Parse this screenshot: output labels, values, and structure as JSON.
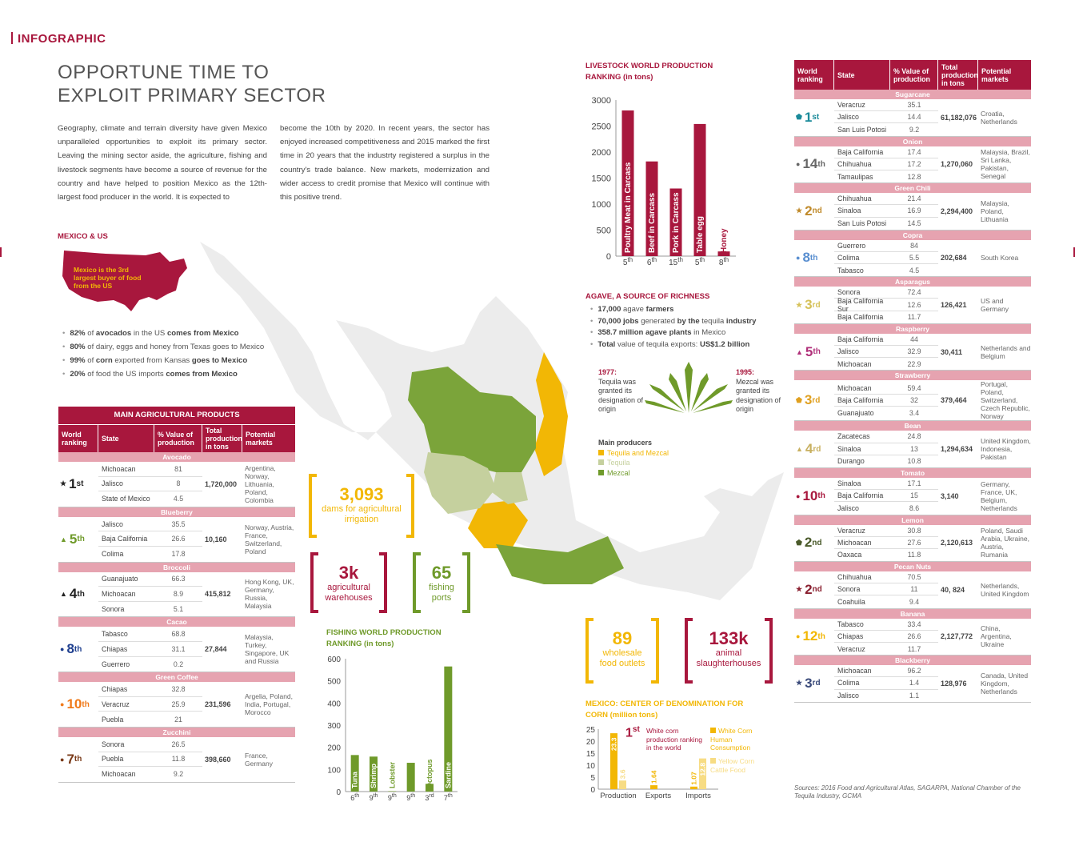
{
  "section_tag": "INFOGRAPHIC",
  "title_line1": "OPPORTUNE TIME TO",
  "title_line2": "EXPLOIT PRIMARY SECTOR",
  "intro_left": "Geography, climate and terrain diversity have given Mexico unparalleled opportunities to exploit its primary sector. Leaving the mining sector aside, the agriculture, fishing and livestock segments have become a source of revenue for the country and have helped to position Mexico as the 12th-largest food producer in the world. It is expected to",
  "intro_right": "become the 10th by 2020. In recent years, the sector has enjoyed increased competitiveness and 2015 marked the first time in 20 years that the industrty registered a surplus in the country's trade balance. New markets, modernization and wider access to credit promise that Mexico will continue with this positive trend.",
  "mexico_us": {
    "heading": "MEXICO & US",
    "map_text": "Mexico is the 3rd largest buyer of food from the US",
    "bullets": [
      {
        "b1": "82%",
        "t1": " of ",
        "b2": "avocados",
        "t2": " in the US ",
        "b3": "comes from Mexico"
      },
      {
        "b1": "80%",
        "t1": " of dairy, eggs and honey from Texas goes to Mexico",
        "b2": "",
        "t2": "",
        "b3": ""
      },
      {
        "b1": "99%",
        "t1": " of ",
        "b2": "corn",
        "t2": " exported from Kansas ",
        "b3": "goes to Mexico"
      },
      {
        "b1": "20%",
        "t1": " of food the US imports ",
        "b2": "comes from Mexico",
        "t2": "",
        "b3": ""
      }
    ]
  },
  "colors": {
    "crimson": "#a8173d",
    "green": "#6f9a2a",
    "gold": "#f2b705",
    "light_green": "#c5d09e",
    "pink": "#e6a3b0"
  },
  "ag_table": {
    "title": "MAIN AGRICULTURAL PRODUCTS",
    "headers": [
      "World ranking",
      "State",
      "% Value of production",
      "Total production in tons",
      "Potential markets"
    ],
    "groups": [
      {
        "cat": "Avocado",
        "rank": "1",
        "sup": "st",
        "icon": "star-icon",
        "color": "#222",
        "rows": [
          [
            "Michoacan",
            "81"
          ],
          [
            "Jalisco",
            "8"
          ],
          [
            "State of Mexico",
            "4.5"
          ]
        ],
        "total": "1,720,000",
        "markets": "Argentina, Norway, Lithuania, Poland, Colombia"
      },
      {
        "cat": "Blueberry",
        "rank": "5",
        "sup": "th",
        "icon": "triangle-icon",
        "color": "#6f9a2a",
        "rows": [
          [
            "Jalisco",
            "35.5"
          ],
          [
            "Baja California",
            "26.6"
          ],
          [
            "Colima",
            "17.8"
          ]
        ],
        "total": "10,160",
        "markets": "Norway, Austria, France, Switzerland, Poland"
      },
      {
        "cat": "Broccoli",
        "rank": "4",
        "sup": "th",
        "icon": "triangle-icon",
        "color": "#222",
        "rows": [
          [
            "Guanajuato",
            "66.3"
          ],
          [
            "Michoacan",
            "8.9"
          ],
          [
            "Sonora",
            "5.1"
          ]
        ],
        "total": "415,812",
        "markets": "Hong Kong, UK, Germany, Russia, Malaysia"
      },
      {
        "cat": "Cacao",
        "rank": "8",
        "sup": "th",
        "icon": "circle-icon",
        "color": "#1f3f8f",
        "rows": [
          [
            "Tabasco",
            "68.8"
          ],
          [
            "Chiapas",
            "31.1"
          ],
          [
            "Guerrero",
            "0.2"
          ]
        ],
        "total": "27,844",
        "markets": "Malaysia, Turkey, Singapore, UK and Russia"
      },
      {
        "cat": "Green Coffee",
        "rank": "10",
        "sup": "th",
        "icon": "circle-icon",
        "color": "#f07a1a",
        "rows": [
          [
            "Chiapas",
            "32.8"
          ],
          [
            "Veracruz",
            "25.9"
          ],
          [
            "Puebla",
            "21"
          ]
        ],
        "total": "231,596",
        "markets": "Argelia, Poland, India, Portugal, Morocco"
      },
      {
        "cat": "Zucchini",
        "rank": "7",
        "sup": "th",
        "icon": "circle-icon",
        "color": "#7a3b1a",
        "rows": [
          [
            "Sonora",
            "26.5"
          ],
          [
            "Puebla",
            "11.8"
          ],
          [
            "Michoacan",
            "9.2"
          ]
        ],
        "total": "398,660",
        "markets": "France, Germany"
      }
    ]
  },
  "right_table": {
    "headers": [
      "World ranking",
      "State",
      "% Value of production",
      "Total production in tons",
      "Potential markets"
    ],
    "groups": [
      {
        "cat": "Sugarcane",
        "rank": "1",
        "sup": "st",
        "icon": "pentagon-icon",
        "color": "#1a8a9a",
        "rows": [
          [
            "Veracruz",
            "35.1"
          ],
          [
            "Jalisco",
            "14.4"
          ],
          [
            "San Luis Potosi",
            "9.2"
          ]
        ],
        "total": "61,182,076",
        "markets": "Croatia, Netherlands"
      },
      {
        "cat": "Onion",
        "rank": "14",
        "sup": "th",
        "icon": "circle-icon",
        "color": "#666",
        "rows": [
          [
            "Baja California",
            "17.4"
          ],
          [
            "Chihuahua",
            "17.2"
          ],
          [
            "Tamaulipas",
            "12.8"
          ]
        ],
        "total": "1,270,060",
        "markets": "Malaysia, Brazil, Sri Lanka, Pakistan, Senegal"
      },
      {
        "cat": "Green Chili",
        "rank": "2",
        "sup": "nd",
        "icon": "star-icon",
        "color": "#c08a2a",
        "rows": [
          [
            "Chihuahua",
            "21.4"
          ],
          [
            "Sinaloa",
            "16.9"
          ],
          [
            "San Luis Potosi",
            "14.5"
          ]
        ],
        "total": "2,294,400",
        "markets": "Malaysia, Poland, Lithuania"
      },
      {
        "cat": "Copra",
        "rank": "8",
        "sup": "th",
        "icon": "circle-icon",
        "color": "#5a8fd0",
        "rows": [
          [
            "Guerrero",
            "84"
          ],
          [
            "Colima",
            "5.5"
          ],
          [
            "Tabasco",
            "4.5"
          ]
        ],
        "total": "202,684",
        "markets": "South Korea"
      },
      {
        "cat": "Asparagus",
        "rank": "3",
        "sup": "rd",
        "icon": "star-icon",
        "color": "#d6c25a",
        "rows": [
          [
            "Sonora",
            "72.4"
          ],
          [
            "Baja California Sur",
            "12.6"
          ],
          [
            "Baja California",
            "11.7"
          ]
        ],
        "total": "126,421",
        "markets": "US and Germany"
      },
      {
        "cat": "Raspberry",
        "rank": "5",
        "sup": "th",
        "icon": "triangle-icon",
        "color": "#b0307a",
        "rows": [
          [
            "Baja California",
            "44"
          ],
          [
            "Jalisco",
            "32.9"
          ],
          [
            "Michoacan",
            "22.9"
          ]
        ],
        "total": "30,411",
        "markets": "Netherlands and Belgium"
      },
      {
        "cat": "Strawberry",
        "rank": "3",
        "sup": "rd",
        "icon": "pentagon-icon",
        "color": "#e0a020",
        "rows": [
          [
            "Michoacan",
            "59.4"
          ],
          [
            "Baja California",
            "32"
          ],
          [
            "Guanajuato",
            "3.4"
          ]
        ],
        "total": "379,464",
        "markets": "Portugal, Poland, Switzerland, Czech Republic, Norway"
      },
      {
        "cat": "Bean",
        "rank": "4",
        "sup": "rd",
        "icon": "triangle-icon",
        "color": "#c8b060",
        "rows": [
          [
            "Zacatecas",
            "24.8"
          ],
          [
            "Sinaloa",
            "13"
          ],
          [
            "Durango",
            "10.8"
          ]
        ],
        "total": "1,294,634",
        "markets": "United Kingdom, Indonesia, Pakistan"
      },
      {
        "cat": "Tomato",
        "rank": "10",
        "sup": "th",
        "icon": "circle-icon",
        "color": "#a8173d",
        "rows": [
          [
            "Sinaloa",
            "17.1"
          ],
          [
            "Baja California",
            "15"
          ],
          [
            "Jalisco",
            "8.6"
          ]
        ],
        "total": "3,140",
        "markets": "Germany, France, UK, Belgium, Netherlands"
      },
      {
        "cat": "Lemon",
        "rank": "2",
        "sup": "nd",
        "icon": "pentagon-icon",
        "color": "#4a5a2a",
        "rows": [
          [
            "Veracruz",
            "30.8"
          ],
          [
            "Michoacan",
            "27.6"
          ],
          [
            "Oaxaca",
            "11.8"
          ]
        ],
        "total": "2,120,613",
        "markets": "Poland, Saudi Arabia, Ukraine, Austria, Rumania"
      },
      {
        "cat": "Pecan Nuts",
        "rank": "2",
        "sup": "nd",
        "icon": "star-icon",
        "color": "#8a2030",
        "rows": [
          [
            "Chihuahua",
            "70.5"
          ],
          [
            "Sonora",
            "11"
          ],
          [
            "Coahuila",
            "9.4"
          ]
        ],
        "total": "40, 824",
        "markets": "Netherlands, United Kingdom"
      },
      {
        "cat": "Banana",
        "rank": "12",
        "sup": "th",
        "icon": "circle-icon",
        "color": "#f2b705",
        "rows": [
          [
            "Tabasco",
            "33.4"
          ],
          [
            "Chiapas",
            "26.6"
          ],
          [
            "Veracruz",
            "11.7"
          ]
        ],
        "total": "2,127,772",
        "markets": "China, Argentina, Ukraine"
      },
      {
        "cat": "Blackberry",
        "rank": "3",
        "sup": "rd",
        "icon": "star-icon",
        "color": "#3a4a7a",
        "rows": [
          [
            "Michoacan",
            "96.2"
          ],
          [
            "Colima",
            "1.4"
          ],
          [
            "Jalisco",
            "1.1"
          ]
        ],
        "total": "128,976",
        "markets": "Canada, United Kingdom, Netherlands"
      }
    ]
  },
  "livestock": {
    "heading": "LIVESTOCK WORLD PRODUCTION RANKING (in tons)"
  },
  "fishing": {
    "heading": "FISHING WORLD PRODUCTION RANKING (in tons)"
  },
  "corn": {
    "heading": "MEXICO: CENTER OF DENOMINATION FOR CORN (million tons)",
    "rank_big": "1",
    "rank_sup": "st",
    "rank_text": "White corn production ranking in the world",
    "legend": [
      "White Corn Human Consumption",
      "Yellow Corn Cattle Food"
    ]
  },
  "agave": {
    "heading": "AGAVE, A SOURCE OF RICHNESS",
    "bullets": [
      {
        "b": "17,000",
        "t": " agave ",
        "b2": "farmers",
        "t2": ""
      },
      {
        "b": "70,000 jobs",
        "t": " generated ",
        "b2": "by the",
        "t2": " tequila ",
        "b3": "industry"
      },
      {
        "b": "358.7 million agave plants",
        "t": " in Mexico",
        "b2": "",
        "t2": ""
      },
      {
        "b": "Total",
        "t": " value of tequila exports: ",
        "b2": "US$1.2 billion",
        "t2": ""
      }
    ],
    "y1977": "1977:",
    "t1977": "Tequila was granted its designation of origin",
    "y1995": "1995:",
    "t1995": "Mezcal was granted its designation of origin"
  },
  "map_legend": {
    "title": "Main producers",
    "items": [
      "Tequila and Mezcal",
      "Tequila",
      "Mezcal"
    ]
  },
  "stats": {
    "dams_num": "3,093",
    "dams_lbl": "dams for agricultural irrigation",
    "warehouses_num": "3k",
    "warehouses_lbl": "agricultural warehouses",
    "ports_num": "65",
    "ports_lbl": "fishing ports",
    "outlets_num": "89",
    "outlets_lbl": "wholesale food outlets",
    "slaughter_num": "133k",
    "slaughter_lbl": "animal slaughterhouses"
  },
  "sources": "Sources: 2016 Food and Agricultural Atlas, SAGARPA, National Chamber of the Tequila Industry, GCMA",
  "chart_data": [
    {
      "type": "bar",
      "id": "livestock",
      "title": "LIVESTOCK WORLD PRODUCTION RANKING (in tons)",
      "categories": [
        "Poultry Meat in Carcass",
        "Beef in Carcass",
        "Pork in Carcass",
        "Table egg",
        "Honey"
      ],
      "values": [
        2800,
        1820,
        1300,
        2540,
        90
      ],
      "x_ticks": [
        {
          "n": "5",
          "s": "th"
        },
        {
          "n": "6",
          "s": "th"
        },
        {
          "n": "15",
          "s": "th"
        },
        {
          "n": "5",
          "s": "th"
        },
        {
          "n": "8",
          "s": "th"
        }
      ],
      "ylim": [
        0,
        3000
      ],
      "yticks": [
        0,
        500,
        1000,
        1500,
        2000,
        2500,
        3000
      ],
      "color": "#a8173d"
    },
    {
      "type": "bar",
      "id": "fishing",
      "title": "FISHING WORLD PRODUCTION RANKING (in tons)",
      "categories": [
        "Tuna",
        "Shrimp",
        "Lobster",
        "Bream",
        "Octopus",
        "Sardine"
      ],
      "values": [
        165,
        158,
        2,
        130,
        35,
        565
      ],
      "x_ticks": [
        {
          "n": "6",
          "s": "th"
        },
        {
          "n": "9",
          "s": "th"
        },
        {
          "n": "9",
          "s": "th"
        },
        {
          "n": "9",
          "s": "th"
        },
        {
          "n": "3",
          "s": "rd"
        },
        {
          "n": "7",
          "s": "th"
        }
      ],
      "ylim": [
        0,
        600
      ],
      "yticks": [
        0,
        100,
        200,
        300,
        400,
        500,
        600
      ],
      "color": "#6f9a2a"
    },
    {
      "type": "bar",
      "id": "corn",
      "title": "MEXICO: CENTER OF DENOMINATION FOR CORN (million tons)",
      "categories": [
        "Production",
        "Exports",
        "Imports"
      ],
      "series": [
        {
          "name": "White Corn Human Consumption",
          "values": [
            23.3,
            1.64,
            1.07
          ],
          "color": "#f2b705"
        },
        {
          "name": "Yellow Corn Cattle Food",
          "values": [
            3.6,
            null,
            12.8
          ],
          "color": "#f7dc84"
        }
      ],
      "ylim": [
        0,
        25
      ],
      "yticks": [
        0,
        5,
        10,
        15,
        20,
        25
      ]
    }
  ]
}
